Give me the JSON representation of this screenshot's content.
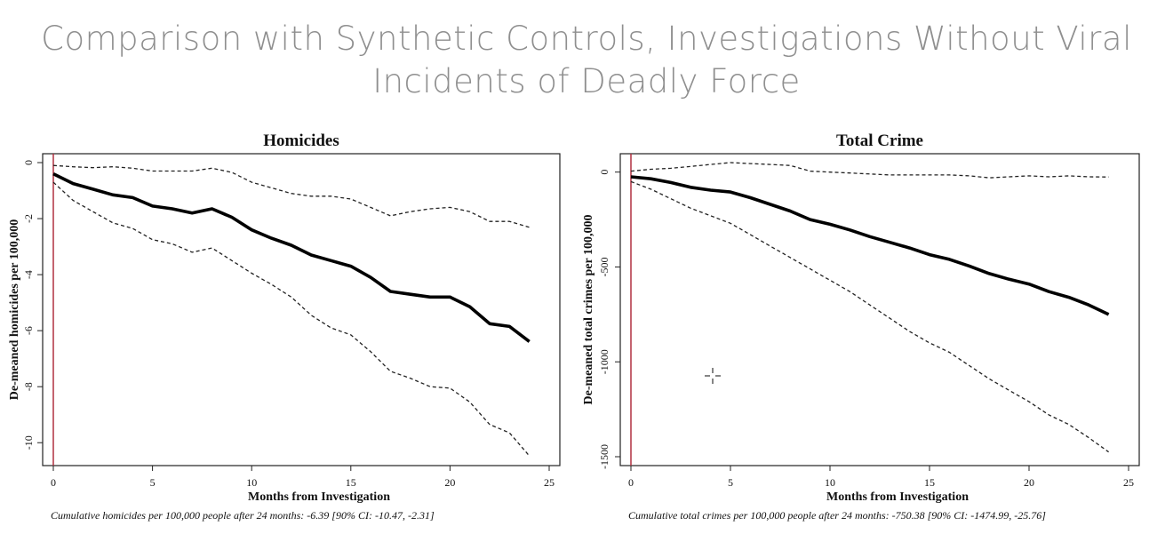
{
  "slide": {
    "title_line1": "Comparison with Synthetic Controls, Investigations Without Viral",
    "title_line2": "Incidents of Deadly Force"
  },
  "colors": {
    "estimate": "#000000",
    "ci": "#222222",
    "treatment_line": "#b03040",
    "title": "#8f8f8f"
  },
  "cursor_icon": "crosshair-cursor-icon",
  "chart_data": [
    {
      "type": "line",
      "title": "Homicides",
      "xlabel": "Months from Investigation",
      "ylabel": "De-meaned homicides per 100,000",
      "xlim": [
        0,
        25
      ],
      "ylim": [
        -10.5,
        0
      ],
      "xticks": [
        0,
        5,
        10,
        15,
        20,
        25
      ],
      "yticks": [
        0,
        -2,
        -4,
        -6,
        -8,
        -10
      ],
      "treatment_x": 0,
      "caption": "Cumulative homicides per 100,000 people after 24 months: -6.39 [90% CI: -10.47, -2.31]",
      "x": [
        0,
        1,
        2,
        3,
        4,
        5,
        6,
        7,
        8,
        9,
        10,
        11,
        12,
        13,
        14,
        15,
        16,
        17,
        18,
        19,
        20,
        21,
        22,
        23,
        24
      ],
      "series": [
        {
          "role": "estimate",
          "values": [
            -0.4,
            -0.75,
            -0.95,
            -1.15,
            -1.25,
            -1.55,
            -1.65,
            -1.8,
            -1.65,
            -1.95,
            -2.4,
            -2.7,
            -2.95,
            -3.3,
            -3.5,
            -3.7,
            -4.1,
            -4.6,
            -4.7,
            -4.8,
            -4.8,
            -5.15,
            -5.75,
            -5.85,
            -6.39
          ]
        },
        {
          "role": "upper",
          "values": [
            -0.1,
            -0.15,
            -0.18,
            -0.15,
            -0.2,
            -0.3,
            -0.3,
            -0.3,
            -0.2,
            -0.35,
            -0.7,
            -0.9,
            -1.1,
            -1.2,
            -1.2,
            -1.3,
            -1.6,
            -1.9,
            -1.75,
            -1.65,
            -1.6,
            -1.75,
            -2.1,
            -2.1,
            -2.31
          ]
        },
        {
          "role": "lower",
          "values": [
            -0.7,
            -1.35,
            -1.75,
            -2.15,
            -2.35,
            -2.75,
            -2.9,
            -3.2,
            -3.05,
            -3.5,
            -3.95,
            -4.35,
            -4.8,
            -5.45,
            -5.9,
            -6.15,
            -6.75,
            -7.45,
            -7.7,
            -8.0,
            -8.05,
            -8.55,
            -9.35,
            -9.65,
            -10.47
          ]
        }
      ]
    },
    {
      "type": "line",
      "title": "Total Crime",
      "xlabel": "Months from Investigation",
      "ylabel": "De-meaned total crimes per 100,000",
      "xlim": [
        0,
        25
      ],
      "ylim": [
        -1500,
        50
      ],
      "xticks": [
        0,
        5,
        10,
        15,
        20,
        25
      ],
      "yticks": [
        0,
        -500,
        -1000,
        -1500
      ],
      "treatment_x": 0,
      "caption": "Cumulative total crimes per 100,000 people after 24 months: -750.38 [90% CI: -1474.99, -25.76]",
      "x": [
        0,
        1,
        2,
        3,
        4,
        5,
        6,
        7,
        8,
        9,
        10,
        11,
        12,
        13,
        14,
        15,
        16,
        17,
        18,
        19,
        20,
        21,
        22,
        23,
        24
      ],
      "series": [
        {
          "role": "estimate",
          "values": [
            -25,
            -35,
            -55,
            -80,
            -95,
            -105,
            -135,
            -170,
            -205,
            -250,
            -275,
            -305,
            -340,
            -370,
            -400,
            -435,
            -460,
            -495,
            -535,
            -565,
            -590,
            -630,
            -660,
            -700,
            -750.38
          ]
        },
        {
          "role": "upper",
          "values": [
            5,
            15,
            20,
            30,
            40,
            50,
            45,
            40,
            35,
            5,
            0,
            -5,
            -10,
            -15,
            -15,
            -15,
            -15,
            -20,
            -30,
            -25,
            -20,
            -25,
            -20,
            -25,
            -25.76
          ]
        },
        {
          "role": "lower",
          "values": [
            -50,
            -90,
            -140,
            -190,
            -230,
            -270,
            -330,
            -390,
            -450,
            -510,
            -570,
            -630,
            -700,
            -770,
            -840,
            -900,
            -950,
            -1020,
            -1090,
            -1150,
            -1210,
            -1280,
            -1330,
            -1400,
            -1474.99
          ]
        }
      ]
    }
  ]
}
